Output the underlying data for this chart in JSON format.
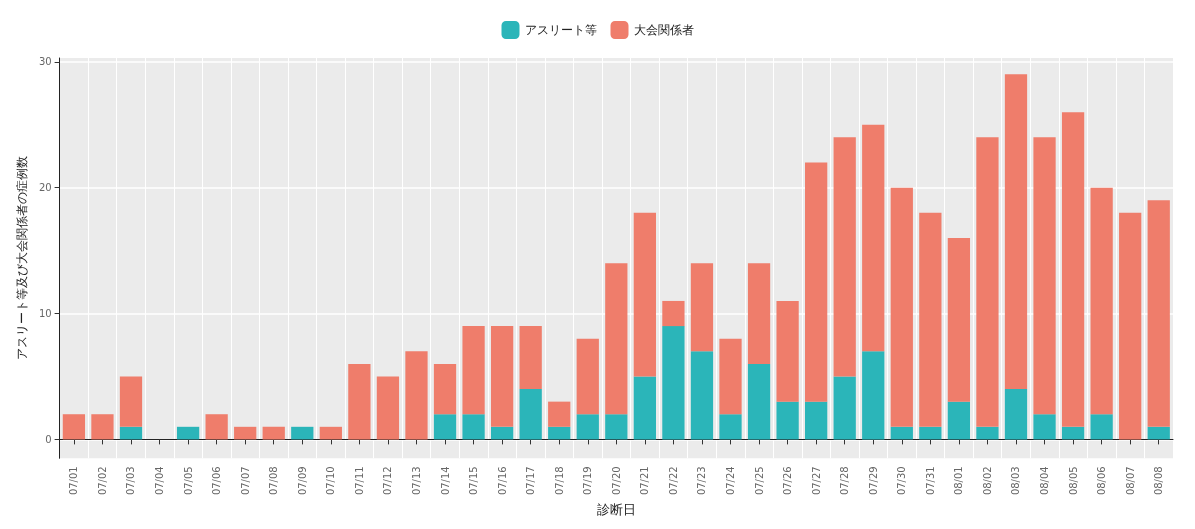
{
  "chart_data": {
    "type": "bar",
    "stacked": true,
    "xlabel": "診断日",
    "ylabel": "アスリート等及び大会関係者の症例数",
    "categories": [
      "07/01",
      "07/02",
      "07/03",
      "07/04",
      "07/05",
      "07/06",
      "07/07",
      "07/08",
      "07/09",
      "07/10",
      "07/11",
      "07/12",
      "07/13",
      "07/14",
      "07/15",
      "07/16",
      "07/17",
      "07/18",
      "07/19",
      "07/20",
      "07/21",
      "07/22",
      "07/23",
      "07/24",
      "07/25",
      "07/26",
      "07/27",
      "07/28",
      "07/29",
      "07/30",
      "07/31",
      "08/01",
      "08/02",
      "08/03",
      "08/04",
      "08/05",
      "08/06",
      "08/07",
      "08/08"
    ],
    "series": [
      {
        "name": "アスリート等",
        "color": "#2bb5b9",
        "values": [
          0,
          0,
          1,
          0,
          1,
          0,
          0,
          0,
          1,
          0,
          0,
          0,
          0,
          2,
          2,
          1,
          4,
          1,
          2,
          2,
          5,
          9,
          7,
          2,
          6,
          3,
          3,
          5,
          7,
          1,
          1,
          3,
          1,
          4,
          2,
          1,
          2,
          0,
          1
        ]
      },
      {
        "name": "大会関係者",
        "color": "#ef7d6b",
        "values": [
          2,
          2,
          4,
          0,
          0,
          2,
          1,
          1,
          0,
          1,
          6,
          5,
          7,
          4,
          7,
          8,
          5,
          2,
          6,
          12,
          13,
          2,
          7,
          6,
          8,
          8,
          19,
          19,
          18,
          19,
          17,
          13,
          23,
          25,
          22,
          25,
          18,
          18,
          18
        ]
      }
    ],
    "ylim": [
      -1.5,
      30.3
    ],
    "yticks": [
      0,
      10,
      20,
      30
    ],
    "grid": true,
    "legend": "top"
  }
}
